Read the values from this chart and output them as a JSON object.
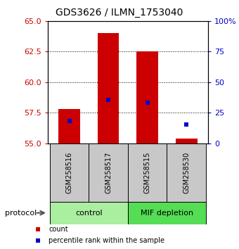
{
  "title": "GDS3626 / ILMN_1753040",
  "samples": [
    "GSM258516",
    "GSM258517",
    "GSM258515",
    "GSM258530"
  ],
  "ylim_left": [
    55,
    65
  ],
  "ylim_right": [
    0,
    100
  ],
  "yticks_left": [
    55,
    57.5,
    60,
    62.5,
    65
  ],
  "yticks_right": [
    0,
    25,
    50,
    75,
    100
  ],
  "ytick_right_labels": [
    "0",
    "25",
    "50",
    "75",
    "100%"
  ],
  "bar_bottom": 55,
  "bar_tops": [
    57.8,
    64.0,
    62.5,
    55.35
  ],
  "percentile_values": [
    56.82,
    58.55,
    58.32,
    56.55
  ],
  "bar_color": "#CC0000",
  "percentile_color": "#0000CC",
  "bar_width": 0.55,
  "left_tick_color": "#CC0000",
  "right_tick_color": "#0000CC",
  "gridline_ticks": [
    57.5,
    60.0,
    62.5
  ],
  "control_color": "#AAEEA0",
  "mif_color": "#55DD55",
  "sample_box_color": "#C8C8C8",
  "legend_items": [
    {
      "label": "count",
      "color": "#CC0000"
    },
    {
      "label": "percentile rank within the sample",
      "color": "#0000CC"
    }
  ],
  "fig_width": 3.4,
  "fig_height": 3.54,
  "dpi": 100
}
